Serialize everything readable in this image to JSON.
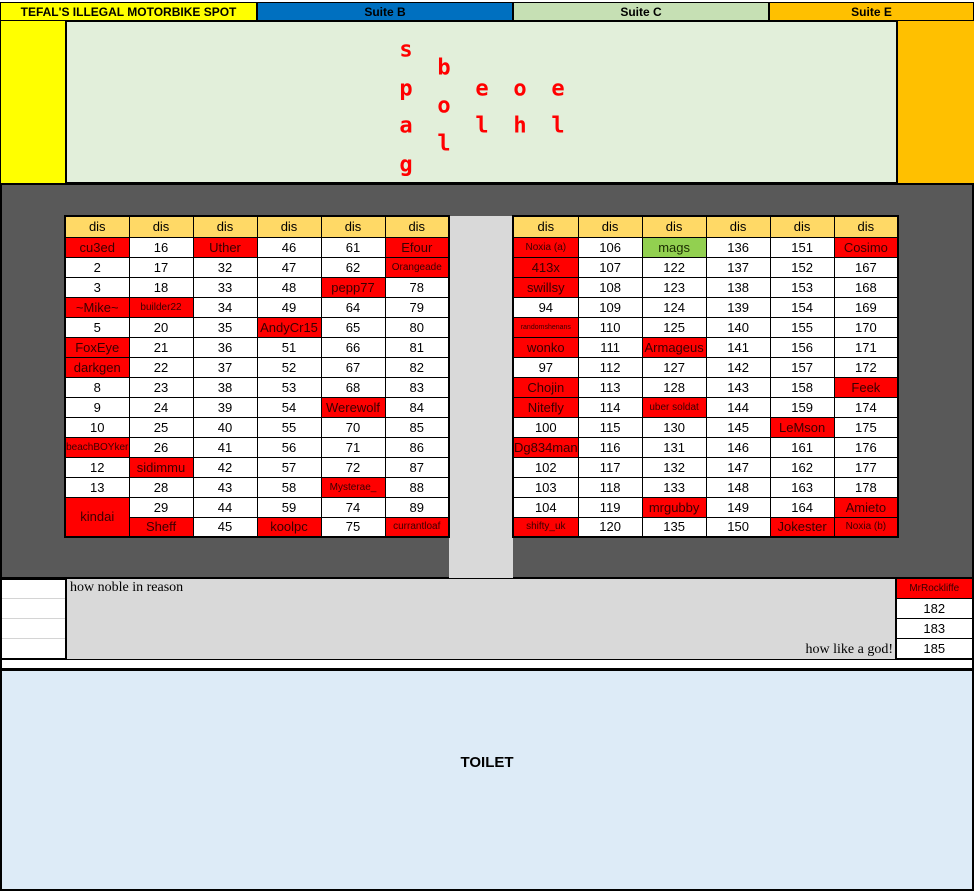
{
  "header": {
    "spot_label": "TEFAL'S ILLEGAL MOTORBIKE SPOT",
    "suite_b": "Suite B",
    "suite_c": "Suite C",
    "suite_e": "Suite E"
  },
  "colors": {
    "red": "#ff0000",
    "green": "#92d050",
    "header": "#ffd966",
    "yellow": "#ffff00",
    "blue": "#0070c0",
    "pale_green": "#c6e0b4",
    "orange": "#ffc000",
    "dark": "#595959",
    "toilet": "#ddebf7"
  },
  "banner_letters": [
    "s",
    "p",
    "a",
    "g",
    "b",
    "o",
    "l",
    "e",
    "l",
    "o",
    "h",
    "e",
    "l"
  ],
  "left_table": {
    "headers": [
      "dis",
      "dis",
      "dis",
      "dis",
      "dis",
      "dis"
    ],
    "rows": [
      [
        {
          "t": "cu3ed",
          "f": "red"
        },
        "16",
        {
          "t": "Uther",
          "f": "red"
        },
        "46",
        "61",
        {
          "t": "Efour",
          "f": "red"
        }
      ],
      [
        "2",
        "17",
        "32",
        "47",
        "62",
        {
          "t": "Orangeade",
          "f": "red"
        }
      ],
      [
        "3",
        "18",
        "33",
        "48",
        {
          "t": "pepp77",
          "f": "red"
        },
        "78"
      ],
      [
        {
          "t": "~Mike~",
          "f": "red"
        },
        {
          "t": "builder22",
          "f": "red"
        },
        "34",
        "49",
        "64",
        "79"
      ],
      [
        "5",
        "20",
        "35",
        {
          "t": "AndyCr15",
          "f": "red"
        },
        "65",
        "80"
      ],
      [
        {
          "t": "FoxEye",
          "f": "red"
        },
        "21",
        "36",
        "51",
        "66",
        "81"
      ],
      [
        {
          "t": "darkgen",
          "f": "red"
        },
        "22",
        "37",
        "52",
        "67",
        "82"
      ],
      [
        "8",
        "23",
        "38",
        "53",
        "68",
        "83"
      ],
      [
        "9",
        "24",
        "39",
        "54",
        {
          "t": "Werewolf",
          "f": "red"
        },
        "84"
      ],
      [
        "10",
        "25",
        "40",
        "55",
        "70",
        "85"
      ],
      [
        {
          "t": "beachBOYker",
          "f": "red"
        },
        "26",
        "41",
        "56",
        "71",
        "86"
      ],
      [
        "12",
        {
          "t": "sidimmu",
          "f": "red"
        },
        "42",
        "57",
        "72",
        "87"
      ],
      [
        "13",
        "28",
        "43",
        "58",
        {
          "t": "Mysterae_",
          "f": "red"
        },
        "88"
      ],
      [
        {
          "t": "kindai",
          "f": "red",
          "span": 2
        },
        "29",
        "44",
        "59",
        "74",
        "89"
      ],
      [
        {
          "t": "Sheff",
          "f": "red"
        },
        "45",
        {
          "t": "koolpc",
          "f": "red"
        },
        "75",
        {
          "t": "currantloaf",
          "f": "red"
        }
      ]
    ]
  },
  "right_table": {
    "headers": [
      "dis",
      "dis",
      "dis",
      "dis",
      "dis",
      "dis"
    ],
    "rows": [
      [
        {
          "t": "Noxia (a)",
          "f": "red"
        },
        "106",
        {
          "t": "mags",
          "f": "green"
        },
        "136",
        "151",
        {
          "t": "Cosimo",
          "f": "red"
        }
      ],
      [
        {
          "t": "413x",
          "f": "red"
        },
        "107",
        "122",
        "137",
        "152",
        "167"
      ],
      [
        {
          "t": "swillsy",
          "f": "red"
        },
        "108",
        "123",
        "138",
        "153",
        "168"
      ],
      [
        "94",
        "109",
        "124",
        "139",
        "154",
        "169"
      ],
      [
        {
          "t": "randomshenans",
          "f": "red"
        },
        "110",
        "125",
        "140",
        "155",
        "170"
      ],
      [
        {
          "t": "wonko",
          "f": "red"
        },
        "111",
        {
          "t": "Armageus",
          "f": "red"
        },
        "141",
        "156",
        "171"
      ],
      [
        "97",
        "112",
        "127",
        "142",
        "157",
        "172"
      ],
      [
        {
          "t": "Chojin",
          "f": "red"
        },
        "113",
        "128",
        "143",
        "158",
        {
          "t": "Feek",
          "f": "red"
        }
      ],
      [
        {
          "t": "Nitefly",
          "f": "red"
        },
        "114",
        {
          "t": "uber soldat",
          "f": "red"
        },
        "144",
        "159",
        "174"
      ],
      [
        "100",
        "115",
        "130",
        "145",
        {
          "t": "LeMson",
          "f": "red"
        },
        "175"
      ],
      [
        {
          "t": "Dg834man",
          "f": "red"
        },
        "116",
        "131",
        "146",
        "161",
        "176"
      ],
      [
        "102",
        "117",
        "132",
        "147",
        "162",
        "177"
      ],
      [
        "103",
        "118",
        "133",
        "148",
        "163",
        "178"
      ],
      [
        "104",
        "119",
        {
          "t": "mrgubby",
          "f": "red"
        },
        "149",
        "164",
        {
          "t": "Amieto",
          "f": "red"
        }
      ],
      [
        {
          "t": "shifty_uk",
          "f": "red"
        },
        "120",
        "135",
        "150",
        {
          "t": "Jokester",
          "f": "red"
        },
        {
          "t": "Noxia (b)",
          "f": "red"
        }
      ]
    ]
  },
  "notes": {
    "top_left": "how noble in reason",
    "bottom_right": "how like a god!"
  },
  "side_column": [
    {
      "t": "MrRockliffe",
      "f": "red"
    },
    "182",
    "183",
    "185"
  ],
  "toilet_label": "TOILET"
}
